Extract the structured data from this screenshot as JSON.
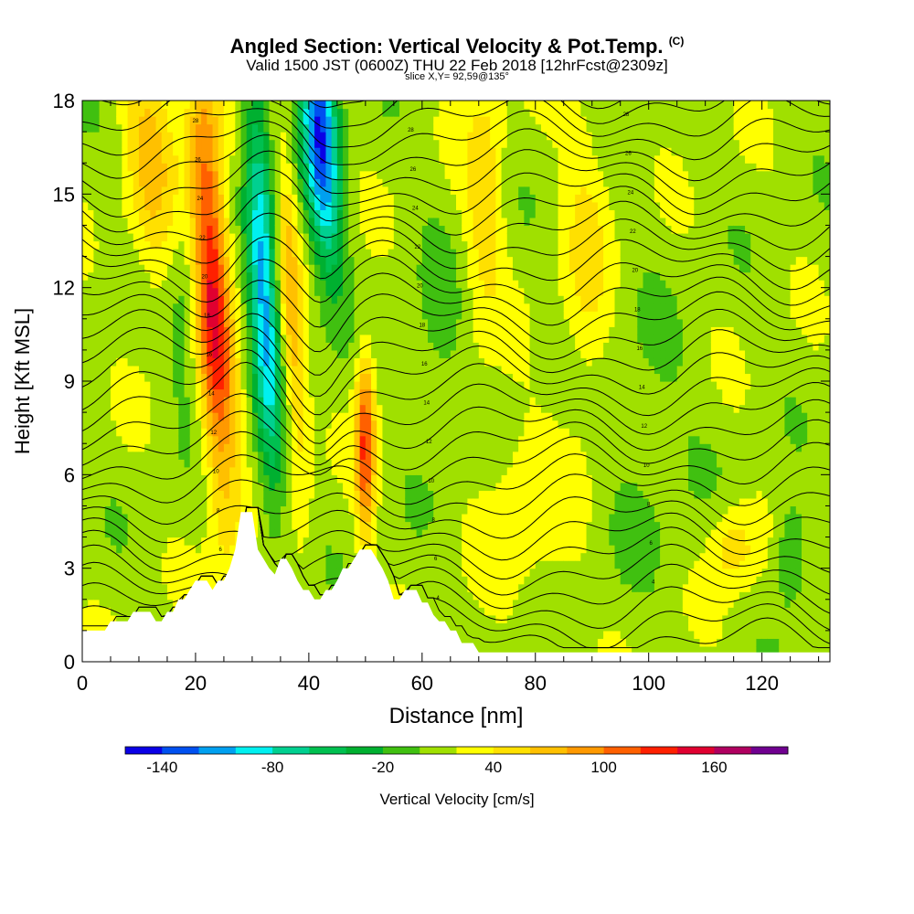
{
  "chart_data": {
    "type": "heatmap",
    "title": "Angled Section: Vertical Velocity & Pot.Temp.",
    "title_suffix": "(C)",
    "subtitle": "Valid 1500 JST (0600Z) THU 22 Feb 2018 [12hrFcst@2309z]",
    "subtitle2": "slice X,Y= 92,59@135°",
    "xlabel": "Distance [nm]",
    "ylabel": "Height [Kft MSL]",
    "xlim": [
      0,
      132
    ],
    "ylim": [
      0,
      18
    ],
    "xticks": [
      0,
      20,
      40,
      60,
      80,
      100,
      120
    ],
    "yticks": [
      0,
      3,
      6,
      9,
      12,
      15,
      18
    ],
    "colorbar": {
      "label": "Vertical Velocity [cm/s]",
      "tick_labels": [
        "-140",
        "-80",
        "-20",
        "40",
        "100",
        "160"
      ],
      "bins": [
        -160,
        -140,
        -120,
        -100,
        -80,
        -60,
        -40,
        -20,
        0,
        20,
        40,
        60,
        80,
        100,
        120,
        140,
        160,
        180
      ],
      "colors": [
        "#0a00e6",
        "#0050f0",
        "#00a0f0",
        "#00f0f0",
        "#00d090",
        "#00c050",
        "#00b030",
        "#40c010",
        "#a0e000",
        "#ffff00",
        "#ffe000",
        "#ffc000",
        "#ff9900",
        "#ff6000",
        "#ff2000",
        "#e00030",
        "#b00060",
        "#700090"
      ]
    },
    "contour_labels": [
      "28",
      "26",
      "24",
      "22",
      "20",
      "18",
      "16",
      "14",
      "12",
      "10",
      "8",
      "6",
      "4"
    ],
    "terrain_kft": [
      [
        0,
        1.0
      ],
      [
        1,
        1.0
      ],
      [
        2,
        1.0
      ],
      [
        3,
        1.0
      ],
      [
        4,
        1.0
      ],
      [
        5,
        1.3
      ],
      [
        6,
        1.3
      ],
      [
        7,
        1.3
      ],
      [
        8,
        1.3
      ],
      [
        9,
        1.6
      ],
      [
        10,
        1.6
      ],
      [
        11,
        1.6
      ],
      [
        12,
        1.6
      ],
      [
        13,
        1.3
      ],
      [
        14,
        1.3
      ],
      [
        15,
        1.6
      ],
      [
        16,
        1.6
      ],
      [
        17,
        2.0
      ],
      [
        18,
        2.0
      ],
      [
        19,
        2.3
      ],
      [
        20,
        2.6
      ],
      [
        21,
        2.6
      ],
      [
        22,
        2.6
      ],
      [
        23,
        2.3
      ],
      [
        24,
        2.6
      ],
      [
        25,
        2.6
      ],
      [
        26,
        3.0
      ],
      [
        27,
        3.6
      ],
      [
        28,
        4.8
      ],
      [
        29,
        4.8
      ],
      [
        30,
        4.8
      ],
      [
        31,
        3.6
      ],
      [
        32,
        3.3
      ],
      [
        33,
        3.0
      ],
      [
        34,
        2.8
      ],
      [
        35,
        3.3
      ],
      [
        36,
        3.3
      ],
      [
        37,
        3.0
      ],
      [
        38,
        2.6
      ],
      [
        39,
        2.3
      ],
      [
        40,
        2.3
      ],
      [
        41,
        2.0
      ],
      [
        42,
        2.0
      ],
      [
        43,
        2.3
      ],
      [
        44,
        2.3
      ],
      [
        45,
        2.6
      ],
      [
        46,
        3.0
      ],
      [
        47,
        3.0
      ],
      [
        48,
        3.3
      ],
      [
        49,
        3.6
      ],
      [
        50,
        3.6
      ],
      [
        51,
        3.6
      ],
      [
        52,
        3.3
      ],
      [
        53,
        3.0
      ],
      [
        54,
        2.6
      ],
      [
        55,
        2.0
      ],
      [
        56,
        2.0
      ],
      [
        57,
        2.3
      ],
      [
        58,
        2.3
      ],
      [
        59,
        2.3
      ],
      [
        60,
        1.9
      ],
      [
        61,
        1.9
      ],
      [
        62,
        1.5
      ],
      [
        63,
        1.3
      ],
      [
        64,
        1.3
      ],
      [
        65,
        1.0
      ],
      [
        66,
        1.0
      ],
      [
        67,
        0.6
      ],
      [
        68,
        0.6
      ],
      [
        69,
        0.6
      ],
      [
        70,
        0.3
      ],
      [
        132,
        0.3
      ]
    ],
    "velocity_features": [
      {
        "x": 42,
        "y": 17,
        "sx": 2.2,
        "sy": 3,
        "tilt": -0.35,
        "value": -150
      },
      {
        "x": 32,
        "y": 12,
        "sx": 1.8,
        "sy": 4.5,
        "tilt": -0.25,
        "value": -120
      },
      {
        "x": 23,
        "y": 12,
        "sx": 2.2,
        "sy": 5,
        "tilt": -0.3,
        "value": 130
      },
      {
        "x": 50,
        "y": 7,
        "sx": 1.2,
        "sy": 2,
        "tilt": 0,
        "value": 110
      },
      {
        "x": 37,
        "y": 11,
        "sx": 1.5,
        "sy": 4,
        "tilt": -0.3,
        "value": 60
      },
      {
        "x": 71,
        "y": 15,
        "sx": 2.5,
        "sy": 3,
        "tilt": 0,
        "value": 40
      },
      {
        "x": 115,
        "y": 3.7,
        "sx": 3,
        "sy": 1,
        "tilt": 0,
        "value": 40
      },
      {
        "x": 125,
        "y": 3.5,
        "sx": 2,
        "sy": 1.2,
        "tilt": 0,
        "value": -40
      },
      {
        "x": 12,
        "y": 16,
        "sx": 3,
        "sy": 3,
        "tilt": -0.3,
        "value": 50
      },
      {
        "x": 18,
        "y": 11,
        "sx": 2,
        "sy": 2,
        "tilt": 0,
        "value": -30
      },
      {
        "x": 63,
        "y": 10,
        "sx": 3,
        "sy": 2.5,
        "tilt": 0,
        "value": -20
      },
      {
        "x": 89,
        "y": 13,
        "sx": 3,
        "sy": 4,
        "tilt": 0,
        "value": 30
      },
      {
        "x": 100,
        "y": 7,
        "sx": 6,
        "sy": 3,
        "tilt": 0,
        "value": -15
      },
      {
        "x": 78,
        "y": 5,
        "sx": 5,
        "sy": 2,
        "tilt": 0,
        "value": 25
      }
    ]
  }
}
